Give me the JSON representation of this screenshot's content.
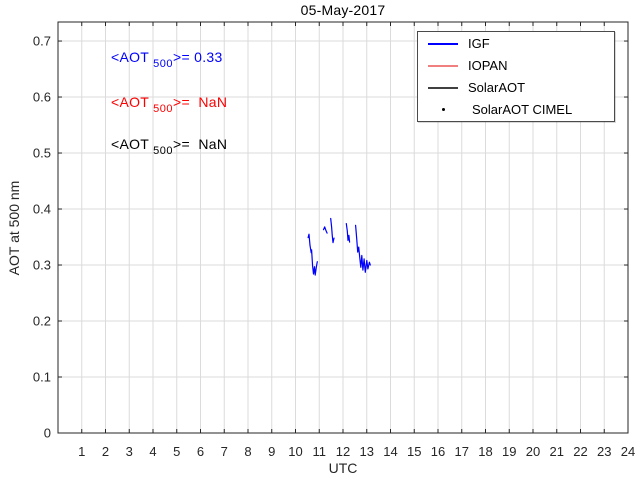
{
  "title": "05-May-2017",
  "axes": {
    "xlabel": "UTC",
    "ylabel": "AOT at 500 nm"
  },
  "annotations": [
    {
      "prefix": "<AOT",
      "sub": "500",
      "suffix": ">= 0.33",
      "color": "#0000ff",
      "series": "IGF"
    },
    {
      "prefix": "<AOT",
      "sub": "500",
      "suffix": ">=  NaN",
      "color": "#ff0000",
      "series": "IOPAN"
    },
    {
      "prefix": "<AOT",
      "sub": "500",
      "suffix": ">=  NaN",
      "color": "#000000",
      "series": "SolarAOT"
    }
  ],
  "legend": {
    "items": [
      {
        "label": "IGF",
        "type": "line",
        "color": "#0000ff"
      },
      {
        "label": "IOPAN",
        "type": "line",
        "color": "#f08080"
      },
      {
        "label": "SolarAOT",
        "type": "line",
        "color": "#404040"
      },
      {
        "label": "SolarAOT CIMEL",
        "type": "dot",
        "color": "#000000"
      }
    ]
  },
  "chart_data": {
    "type": "line",
    "title": "05-May-2017",
    "xlabel": "UTC",
    "ylabel": "AOT at 500 nm",
    "xlim": [
      0,
      24
    ],
    "ylim": [
      0,
      0.734
    ],
    "xticks": [
      1,
      2,
      3,
      4,
      5,
      6,
      7,
      8,
      9,
      10,
      11,
      12,
      13,
      14,
      15,
      16,
      17,
      18,
      19,
      20,
      21,
      22,
      23,
      24
    ],
    "yticks": [
      0,
      0.1,
      0.2,
      0.3,
      0.4,
      0.5,
      0.6,
      0.7
    ],
    "ytick_labels": [
      "0",
      "0.1",
      "0.2",
      "0.3",
      "0.4",
      "0.5",
      "0.6",
      "0.7"
    ],
    "grid": true,
    "legend_position": "top-right",
    "series": [
      {
        "name": "IGF",
        "color": "#0000ff",
        "mean_aot500": "0.33",
        "points": [
          [
            10.53,
            0.349
          ],
          [
            10.57,
            0.355
          ],
          [
            10.61,
            0.335
          ],
          [
            10.66,
            0.322
          ],
          [
            10.68,
            0.327
          ],
          [
            10.72,
            0.298
          ],
          [
            10.76,
            0.284
          ],
          [
            10.8,
            0.297
          ],
          [
            10.83,
            0.282
          ],
          [
            10.88,
            0.297
          ],
          [
            10.92,
            0.306
          ],
          null,
          [
            11.18,
            0.363
          ],
          [
            11.23,
            0.368
          ],
          [
            11.29,
            0.361
          ],
          [
            11.33,
            0.357
          ],
          null,
          [
            11.48,
            0.383
          ],
          [
            11.52,
            0.368
          ],
          [
            11.55,
            0.352
          ],
          [
            11.58,
            0.34
          ],
          [
            11.62,
            0.348
          ],
          null,
          [
            12.14,
            0.374
          ],
          [
            12.18,
            0.361
          ],
          [
            12.21,
            0.344
          ],
          [
            12.25,
            0.353
          ],
          [
            12.28,
            0.341
          ],
          null,
          [
            12.53,
            0.371
          ],
          [
            12.58,
            0.345
          ],
          [
            12.62,
            0.323
          ],
          [
            12.66,
            0.332
          ],
          [
            12.71,
            0.311
          ],
          [
            12.75,
            0.296
          ],
          [
            12.79,
            0.317
          ],
          [
            12.84,
            0.291
          ],
          [
            12.89,
            0.311
          ],
          [
            12.94,
            0.287
          ],
          [
            13.0,
            0.308
          ],
          [
            13.05,
            0.293
          ],
          [
            13.11,
            0.305
          ],
          [
            13.15,
            0.3
          ]
        ]
      },
      {
        "name": "IOPAN",
        "color": "#ff0000",
        "mean_aot500": "NaN",
        "points": []
      },
      {
        "name": "SolarAOT",
        "color": "#000000",
        "mean_aot500": "NaN",
        "points": []
      },
      {
        "name": "SolarAOT CIMEL",
        "color": "#000000",
        "marker": "dot",
        "points": []
      }
    ]
  }
}
